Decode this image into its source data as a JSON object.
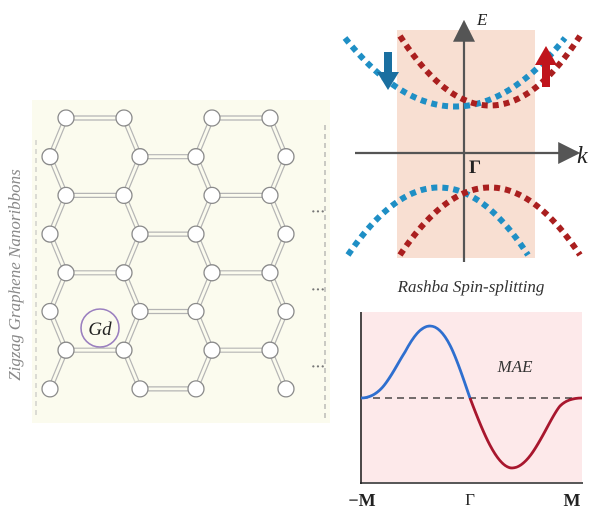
{
  "lattice": {
    "side_label": "Zigzag Graphene Nanoribbons",
    "dopant_label": "Gd",
    "continuation": "···",
    "colors": {
      "panel": "#fbfbee",
      "bond": "#b4b4b4",
      "atom": "#ffffff",
      "atom_stroke": "#8a8a8a",
      "dopant_ring": "#9a7fbf"
    }
  },
  "band_diagram": {
    "axis_energy": "E",
    "axis_momentum": "k",
    "gamma_label": "Γ",
    "caption": "Rashba Spin-splitting",
    "spin_down_color": "#1f8fc5",
    "spin_up_color": "#aa1f1f",
    "shade_color": "#f8dfd2",
    "spin_down_arrow": "spin-down",
    "spin_up_arrow": "spin-up"
  },
  "mae_plot": {
    "label": "MAE",
    "x_ticks": [
      "−M",
      "Γ",
      "M"
    ],
    "background": "#fde9ea",
    "positive_color": "#2f6fcf",
    "negative_color": "#a8172e"
  }
}
